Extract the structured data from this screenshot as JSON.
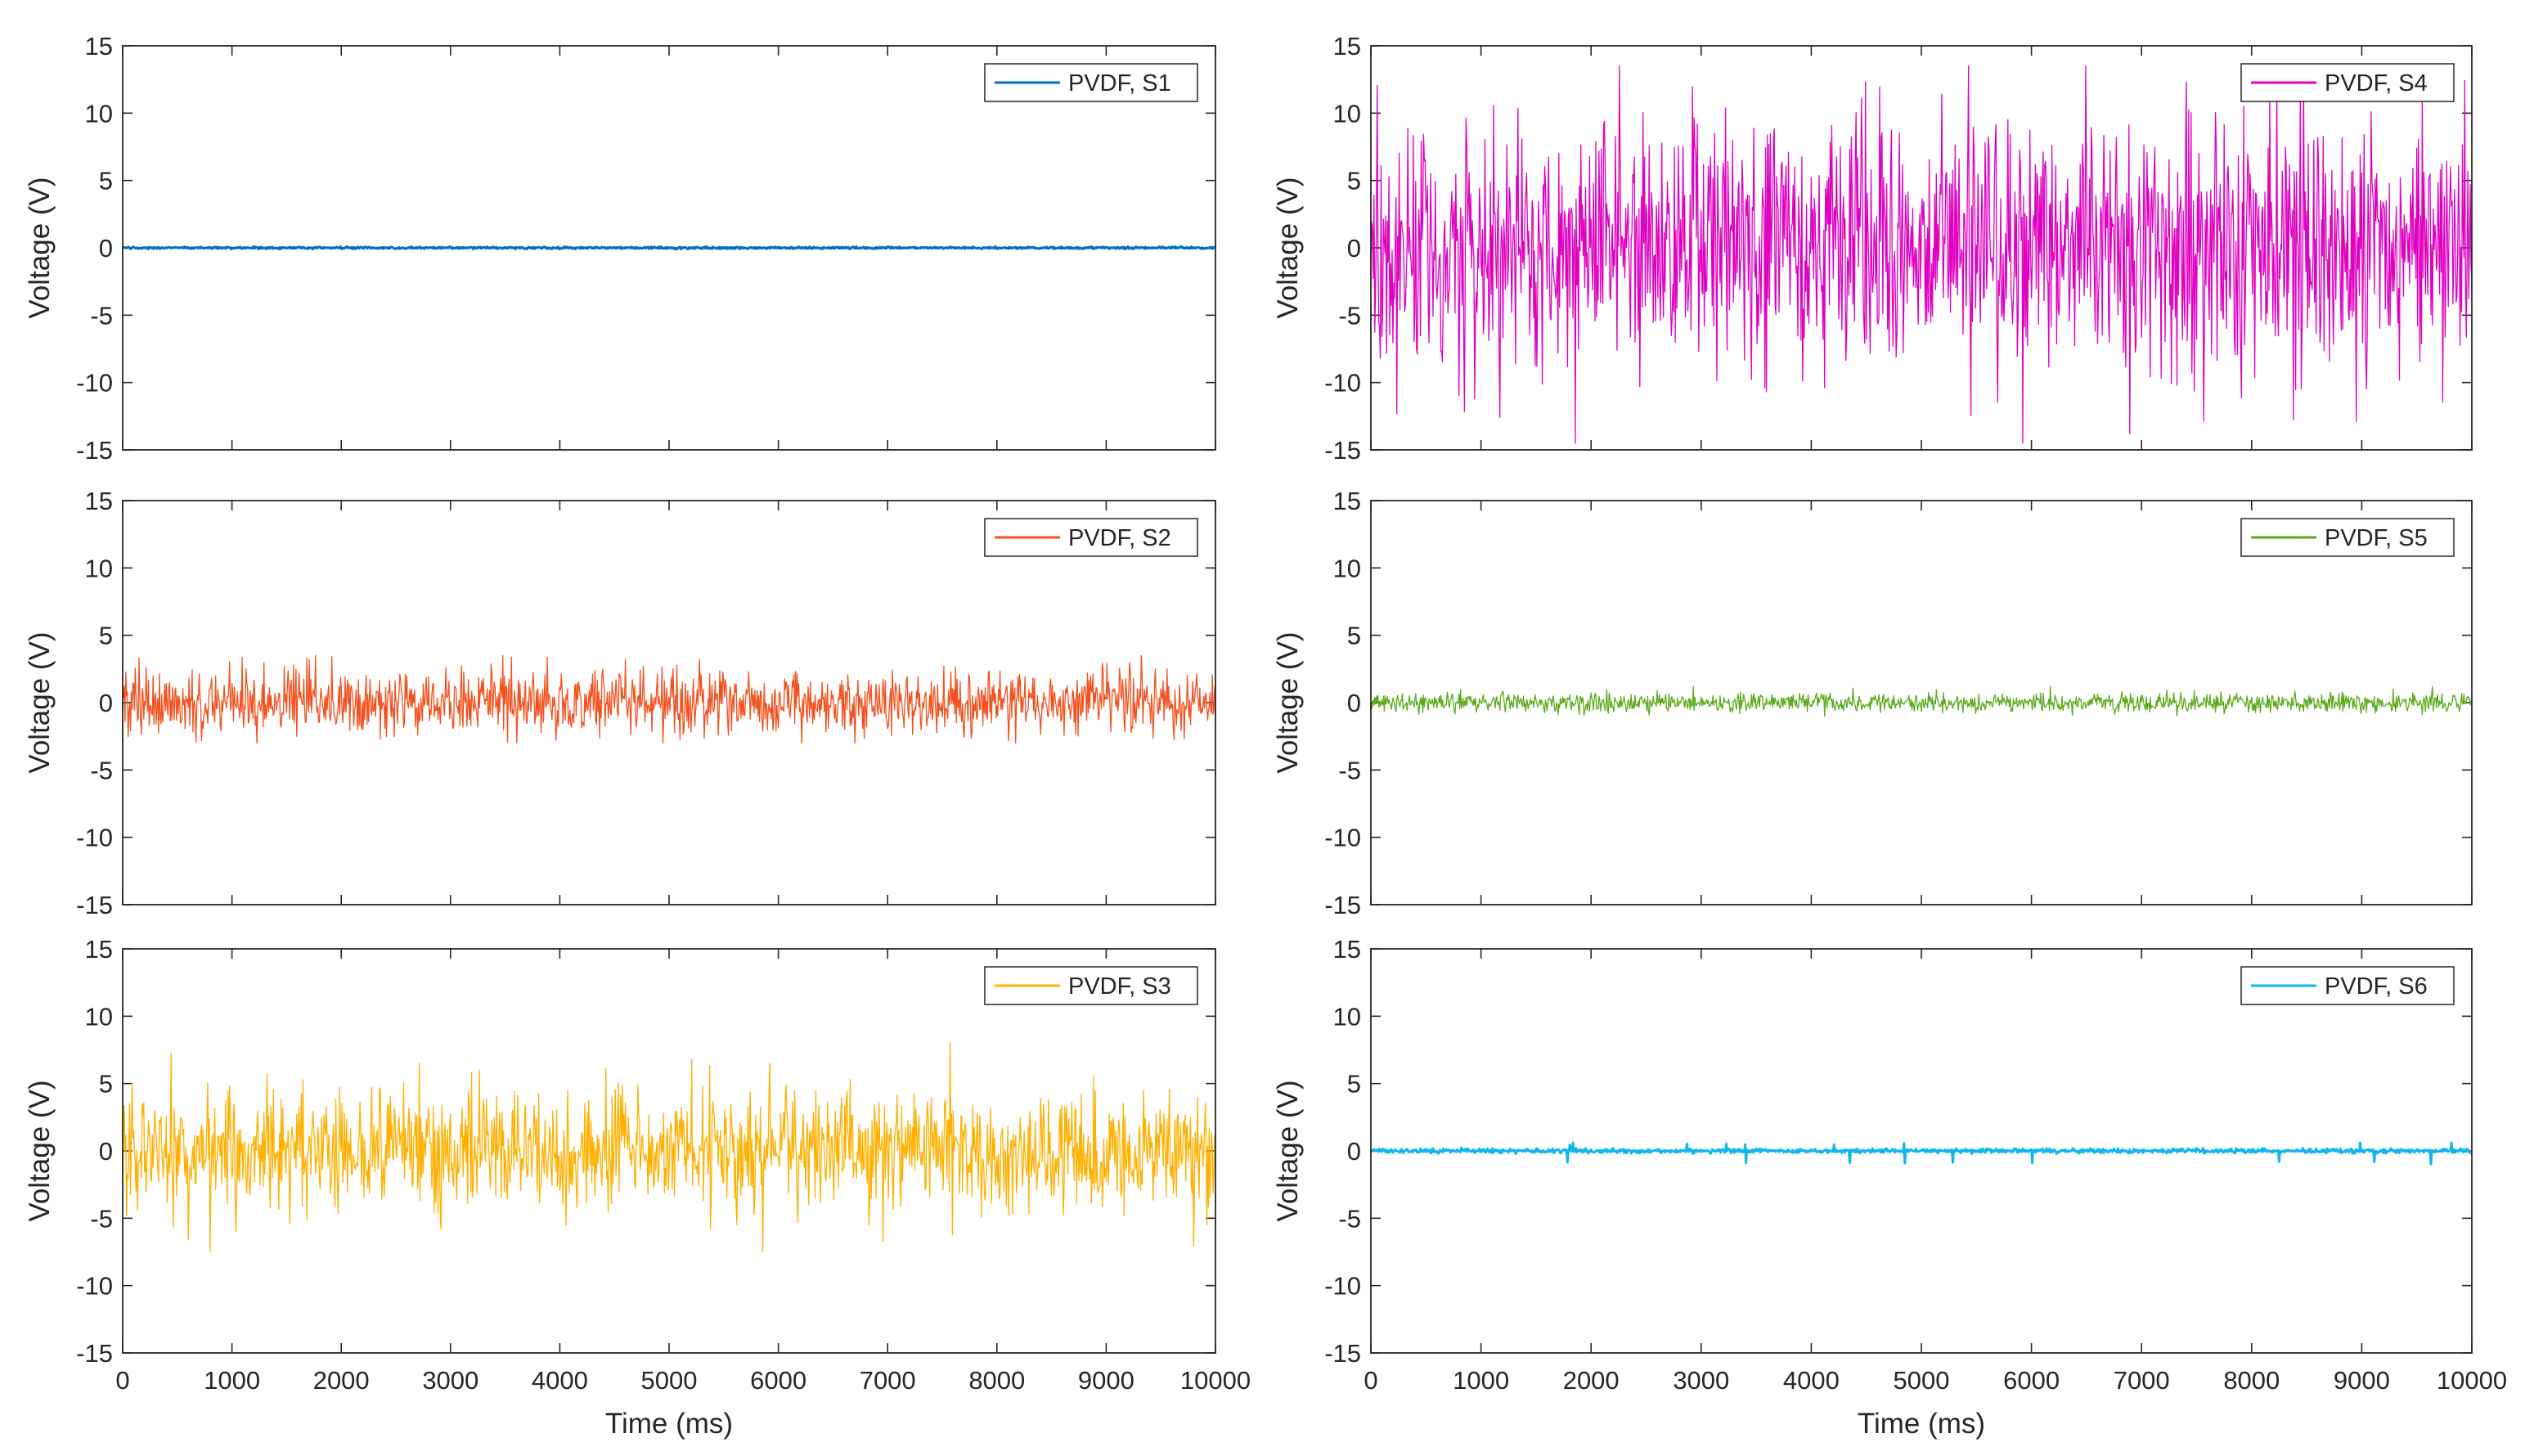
{
  "chart_data": [
    {
      "type": "line",
      "xlabel": "",
      "ylabel": "Voltage (V)",
      "xlim": [
        0,
        10000
      ],
      "ylim": [
        -15,
        15
      ],
      "xticks": [],
      "yticks": [
        "-15",
        "-10",
        "-5",
        "0",
        "5",
        "10",
        "15"
      ],
      "legend": "top-right",
      "series": [
        {
          "name": "PVDF, S1",
          "color": "#0072BD",
          "linewidth": 3,
          "mean": 0,
          "noise_amplitude": 0.04,
          "peak_min": -0.1,
          "peak_max": 0.1
        }
      ]
    },
    {
      "type": "line",
      "xlabel": "",
      "ylabel": "Voltage (V)",
      "xlim": [
        0,
        10000
      ],
      "ylim": [
        -15,
        15
      ],
      "xticks": [],
      "yticks": [
        "-15",
        "-10",
        "-5",
        "0",
        "5",
        "10",
        "15"
      ],
      "legend": "top-right",
      "series": [
        {
          "name": "PVDF, S2",
          "color": "#F4511E",
          "linewidth": 1.3,
          "mean": 0,
          "noise_amplitude": 1.2,
          "peak_min": -3,
          "peak_max": 3.5
        }
      ]
    },
    {
      "type": "line",
      "xlabel": "Time (ms)",
      "ylabel": "Voltage (V)",
      "xlim": [
        0,
        10000
      ],
      "ylim": [
        -15,
        15
      ],
      "xticks": [
        "0",
        "1000",
        "2000",
        "3000",
        "4000",
        "5000",
        "6000",
        "7000",
        "8000",
        "9000",
        "10000"
      ],
      "yticks": [
        "-15",
        "-10",
        "-5",
        "0",
        "5",
        "10",
        "15"
      ],
      "legend": "top-right",
      "series": [
        {
          "name": "PVDF, S3",
          "color": "#FFB000",
          "linewidth": 1.3,
          "mean": 0,
          "noise_amplitude": 2.2,
          "peak_min": -7.5,
          "peak_max": 8
        }
      ]
    },
    {
      "type": "line",
      "xlabel": "",
      "ylabel": "Voltage (V)",
      "xlim": [
        0,
        10000
      ],
      "ylim": [
        -15,
        15
      ],
      "xticks": [],
      "yticks": [
        "-15",
        "-10",
        "-5",
        "0",
        "5",
        "10",
        "15"
      ],
      "legend": "top-right",
      "series": [
        {
          "name": "PVDF, S4",
          "color": "#E000C0",
          "linewidth": 1.3,
          "mean": 0,
          "noise_amplitude": 4.5,
          "peak_min": -14.5,
          "peak_max": 13.5
        }
      ]
    },
    {
      "type": "line",
      "xlabel": "",
      "ylabel": "Voltage (V)",
      "xlim": [
        0,
        10000
      ],
      "ylim": [
        -15,
        15
      ],
      "xticks": [],
      "yticks": [
        "-15",
        "-10",
        "-5",
        "0",
        "5",
        "10",
        "15"
      ],
      "legend": "top-right",
      "series": [
        {
          "name": "PVDF, S5",
          "color": "#5DAA1E",
          "linewidth": 1.3,
          "mean": 0,
          "noise_amplitude": 0.35,
          "peak_min": -1,
          "peak_max": 1.2
        }
      ]
    },
    {
      "type": "line",
      "xlabel": "Time (ms)",
      "ylabel": "Voltage (V)",
      "xlim": [
        0,
        10000
      ],
      "ylim": [
        -15,
        15
      ],
      "xticks": [
        "0",
        "1000",
        "2000",
        "3000",
        "4000",
        "5000",
        "6000",
        "7000",
        "8000",
        "9000",
        "10000"
      ],
      "yticks": [
        "-15",
        "-10",
        "-5",
        "0",
        "5",
        "10",
        "15"
      ],
      "legend": "top-right",
      "series": [
        {
          "name": "PVDF, S6",
          "color": "#12B7E8",
          "linewidth": 3,
          "mean": 0,
          "noise_amplitude": 0.08,
          "peak_min": -1,
          "peak_max": 0.6
        }
      ]
    }
  ]
}
